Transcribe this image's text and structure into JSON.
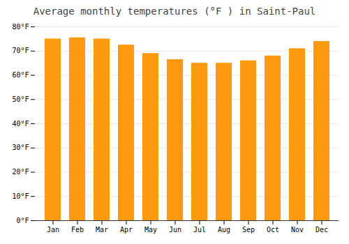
{
  "chart_data": {
    "type": "bar",
    "title": "Average monthly temperatures (°F ) in Saint-Paul",
    "categories": [
      "Jan",
      "Feb",
      "Mar",
      "Apr",
      "May",
      "Jun",
      "Jul",
      "Aug",
      "Sep",
      "Oct",
      "Nov",
      "Dec"
    ],
    "values": [
      75,
      75.5,
      75,
      72.5,
      69,
      66.5,
      65,
      65,
      66,
      68,
      71,
      74
    ],
    "color": "#ff990d",
    "ylim": [
      0,
      80
    ],
    "yticks": [
      {
        "value": 0,
        "label": "0°F"
      },
      {
        "value": 10,
        "label": "10°F"
      },
      {
        "value": 20,
        "label": "20°F"
      },
      {
        "value": 30,
        "label": "30°F"
      },
      {
        "value": 40,
        "label": "40°F"
      },
      {
        "value": 50,
        "label": "50°F"
      },
      {
        "value": 60,
        "label": "60°F"
      },
      {
        "value": 70,
        "label": "70°F"
      },
      {
        "value": 80,
        "label": "80°F"
      }
    ],
    "grid": true
  }
}
